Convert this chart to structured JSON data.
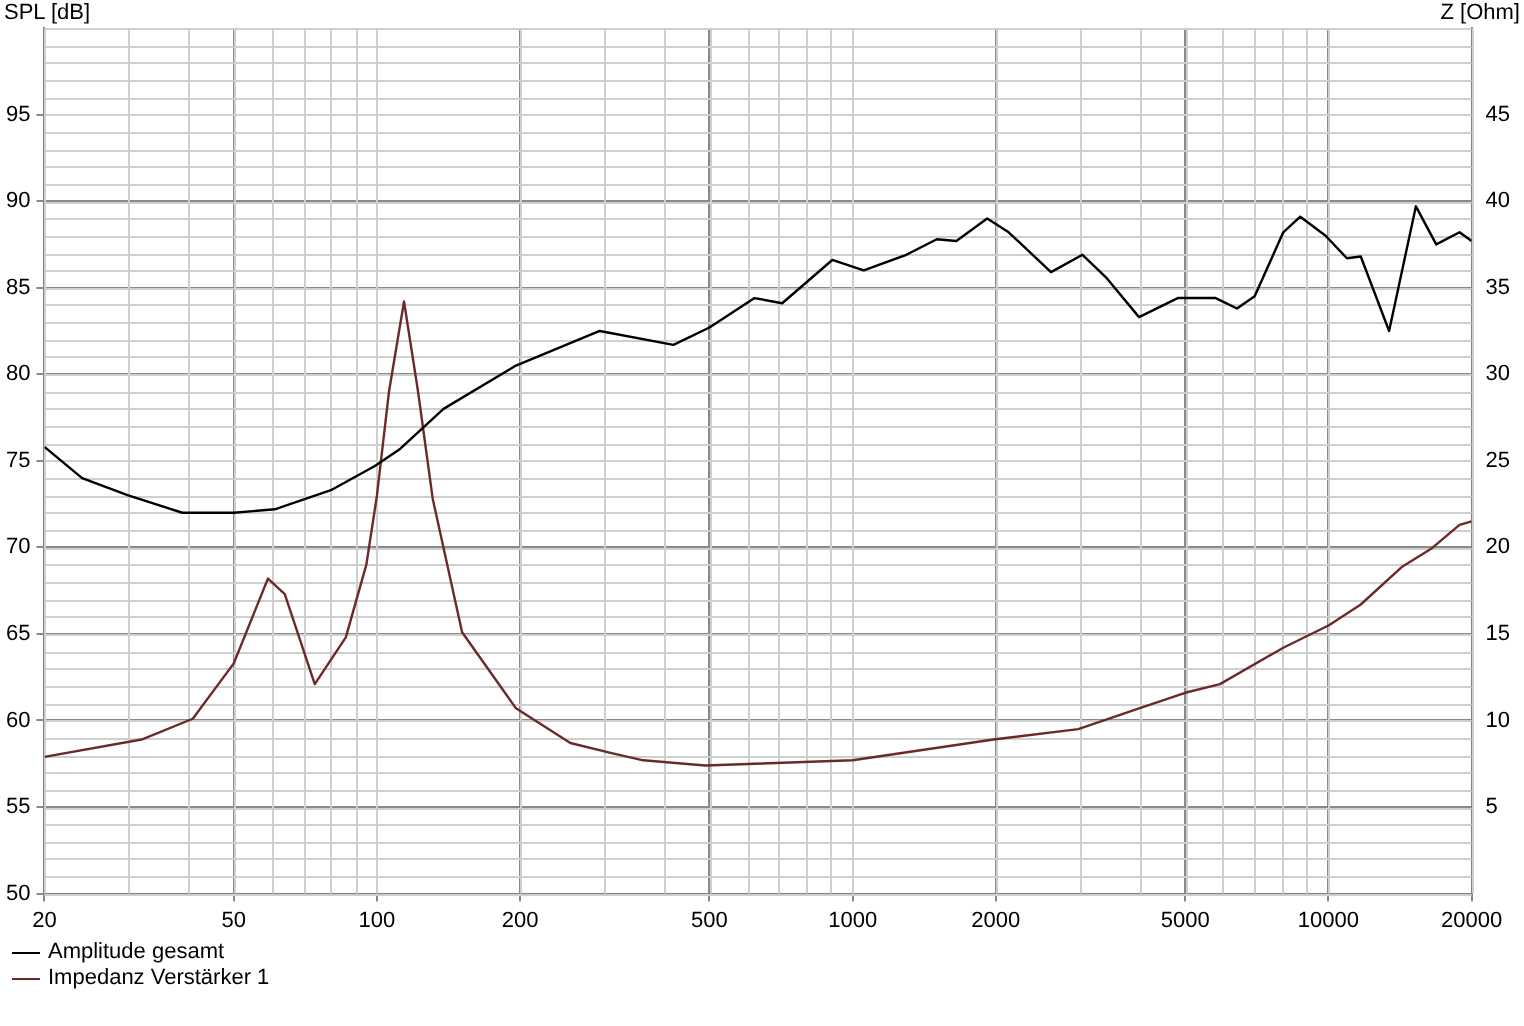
{
  "chart_data": {
    "type": "line",
    "ylabel": "SPL [dB]",
    "y2label": "Z [Ohm]",
    "log": "x",
    "grid": true,
    "legend": "bottom left",
    "marker": "none",
    "line_style": "solid",
    "xlim": [
      20,
      20000
    ],
    "xticks": [
      20,
      50,
      100,
      200,
      500,
      1000,
      2000,
      5000,
      10000,
      20000
    ],
    "ylim": [
      50,
      100
    ],
    "yticks": [
      50,
      55,
      60,
      65,
      70,
      75,
      80,
      85,
      90,
      95
    ],
    "y2lim": [
      0,
      50
    ],
    "y2ticks": [
      5,
      10,
      15,
      20,
      25,
      30,
      35,
      40,
      45
    ],
    "series": [
      {
        "name": "Amplitude gesamt",
        "color": "#000000",
        "x": [
          20,
          24,
          30,
          39,
          50,
          61,
          80,
          99,
          112,
          138,
          196,
          294,
          420,
          500,
          622,
          711,
          906,
          1055,
          1297,
          1503,
          1652,
          1918,
          2128,
          2612,
          3042,
          3408,
          4000,
          4823,
          5799,
          6426,
          7000,
          8040,
          8730,
          9870,
          10940,
          11700,
          13420,
          15280,
          16860,
          18870,
          20000
        ],
        "values": [
          75.8,
          74.0,
          73.0,
          72.0,
          72.0,
          72.2,
          73.3,
          74.7,
          75.7,
          78.0,
          80.5,
          82.5,
          81.7,
          82.7,
          84.4,
          84.1,
          86.6,
          86.0,
          86.9,
          87.8,
          87.7,
          89.0,
          88.2,
          85.9,
          86.9,
          85.6,
          83.3,
          84.4,
          84.4,
          83.8,
          84.5,
          88.2,
          89.1,
          88.0,
          86.7,
          86.8,
          82.5,
          89.7,
          87.5,
          88.2,
          87.7
        ]
      },
      {
        "name": "Impedanz Verstärker 1",
        "color": "#6b2a2a",
        "axis": "y2",
        "x": [
          20,
          32,
          41,
          50,
          59,
          64,
          74,
          86,
          95,
          100,
          106,
          114,
          122,
          131,
          151,
          196,
          255,
          313,
          363,
          490,
          622,
          1000,
          1977,
          2980,
          4000,
          5000,
          5918,
          8040,
          10030,
          11700,
          14320,
          16420,
          18870,
          20000
        ],
        "values": [
          7.9,
          8.9,
          10.1,
          13.3,
          18.2,
          17.3,
          12.1,
          14.8,
          19.0,
          23.0,
          29.0,
          34.2,
          29.0,
          22.8,
          15.1,
          10.7,
          8.7,
          8.1,
          7.7,
          7.4,
          7.5,
          7.7,
          8.9,
          9.5,
          10.7,
          11.6,
          12.1,
          14.2,
          15.5,
          16.7,
          18.9,
          19.9,
          21.3,
          21.5
        ]
      }
    ]
  }
}
